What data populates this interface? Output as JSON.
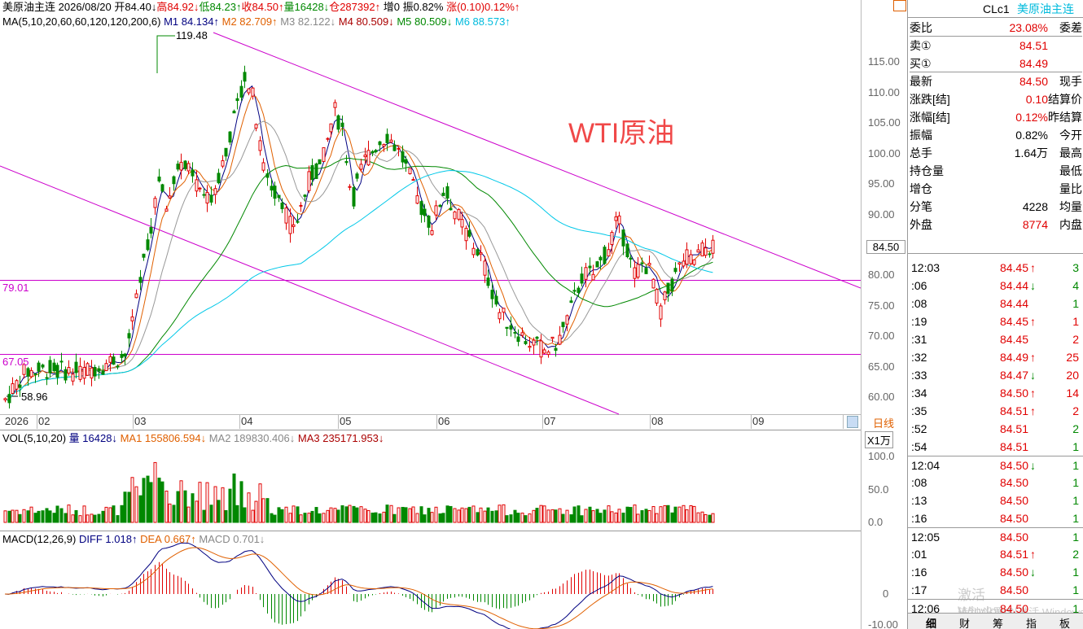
{
  "header": {
    "title": "美原油主连",
    "date": "2026/08/20",
    "open": "开84.40↓",
    "high": "高84.92↓",
    "low": "低84.23↑",
    "close": "收84.50↑",
    "volume": "量16428↓",
    "oi": "仓287392↑",
    "incr": "增0",
    "amp": "振0.82%",
    "chg": "涨(0.10)0.12%↑"
  },
  "ma_line": {
    "label": "MA(5,10,20,60,60,120,120,200,6)",
    "m1": "M1 84.134↑",
    "m2": "M2 82.709↑",
    "m3": "M3 82.122↓",
    "m4": "M4 80.509↓",
    "m5": "M5 80.509↓",
    "m6": "M6 88.573↑"
  },
  "annotation": "WTI原油",
  "price_labels": {
    "peak": "119.48",
    "low": "58.96",
    "line1": "79.01",
    "line2": "67.05",
    "last": "84.50"
  },
  "y_axis": [
    "115.00",
    "110.00",
    "105.00",
    "100.00",
    "95.00",
    "90.00",
    "85.00",
    "80.00",
    "75.00",
    "70.00",
    "65.00",
    "60.00"
  ],
  "x_axis": [
    "2026",
    "02",
    "03",
    "04",
    "05",
    "06",
    "07",
    "08",
    "09"
  ],
  "period_label": "日线",
  "vol_panel": {
    "label": "VOL(5,10,20)",
    "v": "量 16428↓",
    "ma1": "MA1 155806.594↓",
    "ma2": "MA2 189830.406↓",
    "ma3": "MA3 235171.953↓",
    "unit": "X1万",
    "ticks": [
      "100.0",
      "50.0",
      "0.0"
    ]
  },
  "macd_panel": {
    "label": "MACD(12,26,9)",
    "diff": "DIFF 1.018↑",
    "dea": "DEA 0.667↑",
    "macd": "MACD 0.701↓",
    "ticks": [
      "0",
      "-10.00"
    ]
  },
  "side": {
    "code": "CLc1",
    "name": "美原油主连",
    "rows": [
      {
        "k": "委比",
        "v": "23.08%",
        "k2": "委差",
        "c": "r"
      },
      {
        "k": "卖①",
        "v": "84.51",
        "k2": "",
        "c": "r"
      },
      {
        "k": "买①",
        "v": "84.49",
        "k2": "",
        "c": "r"
      },
      {
        "k": "最新",
        "v": "84.50",
        "k2": "现手",
        "c": "r"
      },
      {
        "k": "涨跌[结]",
        "v": "0.10",
        "k2": "结算价",
        "c": "r"
      },
      {
        "k": "涨幅[结]",
        "v": "0.12%",
        "k2": "昨结算",
        "c": "r"
      },
      {
        "k": "振幅",
        "v": "0.82%",
        "k2": "今开",
        "c": "k"
      },
      {
        "k": "总手",
        "v": "1.64万",
        "k2": "最高",
        "c": "k"
      },
      {
        "k": "持仓量",
        "v": "",
        "k2": "最低",
        "c": "k"
      },
      {
        "k": "增仓",
        "v": "",
        "k2": "量比",
        "c": "k"
      },
      {
        "k": "分笔",
        "v": "4228",
        "k2": "均量",
        "c": "k"
      },
      {
        "k": "外盘",
        "v": "8774",
        "k2": "内盘",
        "c": "r"
      }
    ],
    "ticks": [
      {
        "t": "12:03",
        "p": "84.45",
        "a": "↑",
        "ac": "r",
        "v": "3",
        "vc": "g"
      },
      {
        "t": ":06",
        "p": "84.44",
        "a": "↓",
        "ac": "g",
        "v": "4",
        "vc": "g"
      },
      {
        "t": ":08",
        "p": "84.44",
        "a": "",
        "ac": "",
        "v": "1",
        "vc": "g"
      },
      {
        "t": ":19",
        "p": "84.45",
        "a": "↑",
        "ac": "r",
        "v": "1",
        "vc": "r"
      },
      {
        "t": ":31",
        "p": "84.45",
        "a": "",
        "ac": "",
        "v": "2",
        "vc": "r"
      },
      {
        "t": ":32",
        "p": "84.49",
        "a": "↑",
        "ac": "r",
        "v": "25",
        "vc": "r"
      },
      {
        "t": ":33",
        "p": "84.47",
        "a": "↓",
        "ac": "g",
        "v": "20",
        "vc": "r"
      },
      {
        "t": ":34",
        "p": "84.50",
        "a": "↑",
        "ac": "r",
        "v": "14",
        "vc": "r"
      },
      {
        "t": ":35",
        "p": "84.51",
        "a": "↑",
        "ac": "r",
        "v": "2",
        "vc": "r"
      },
      {
        "t": ":52",
        "p": "84.51",
        "a": "",
        "ac": "",
        "v": "2",
        "vc": "g"
      },
      {
        "t": ":54",
        "p": "84.51",
        "a": "",
        "ac": "",
        "v": "1",
        "vc": "g"
      },
      {
        "t": "12:04",
        "p": "84.50",
        "a": "↓",
        "ac": "g",
        "v": "1",
        "vc": "g"
      },
      {
        "t": ":08",
        "p": "84.50",
        "a": "",
        "ac": "",
        "v": "1",
        "vc": "g"
      },
      {
        "t": ":13",
        "p": "84.50",
        "a": "",
        "ac": "",
        "v": "1",
        "vc": "g"
      },
      {
        "t": ":16",
        "p": "84.50",
        "a": "",
        "ac": "",
        "v": "1",
        "vc": "g"
      },
      {
        "t": "12:05",
        "p": "84.50",
        "a": "",
        "ac": "",
        "v": "1",
        "vc": "g"
      },
      {
        "t": ":01",
        "p": "84.51",
        "a": "↑",
        "ac": "r",
        "v": "2",
        "vc": "g"
      },
      {
        "t": ":16",
        "p": "84.50",
        "a": "↓",
        "ac": "g",
        "v": "1",
        "vc": "g"
      },
      {
        "t": ":17",
        "p": "84.50",
        "a": "",
        "ac": "",
        "v": "1",
        "vc": "g"
      },
      {
        "t": "12:06",
        "p": "84.50",
        "a": "",
        "ac": "",
        "v": "1",
        "vc": "g"
      }
    ],
    "tabs": [
      "细",
      "财",
      "筹",
      "指",
      "板"
    ]
  },
  "watermark": "激活 Windows",
  "watermark2": "转到\"设置\"以激活 Windows。",
  "colors": {
    "up": "#e00000",
    "down": "#008800",
    "channel": "#cc00cc",
    "ma6": "#00c8e8"
  }
}
